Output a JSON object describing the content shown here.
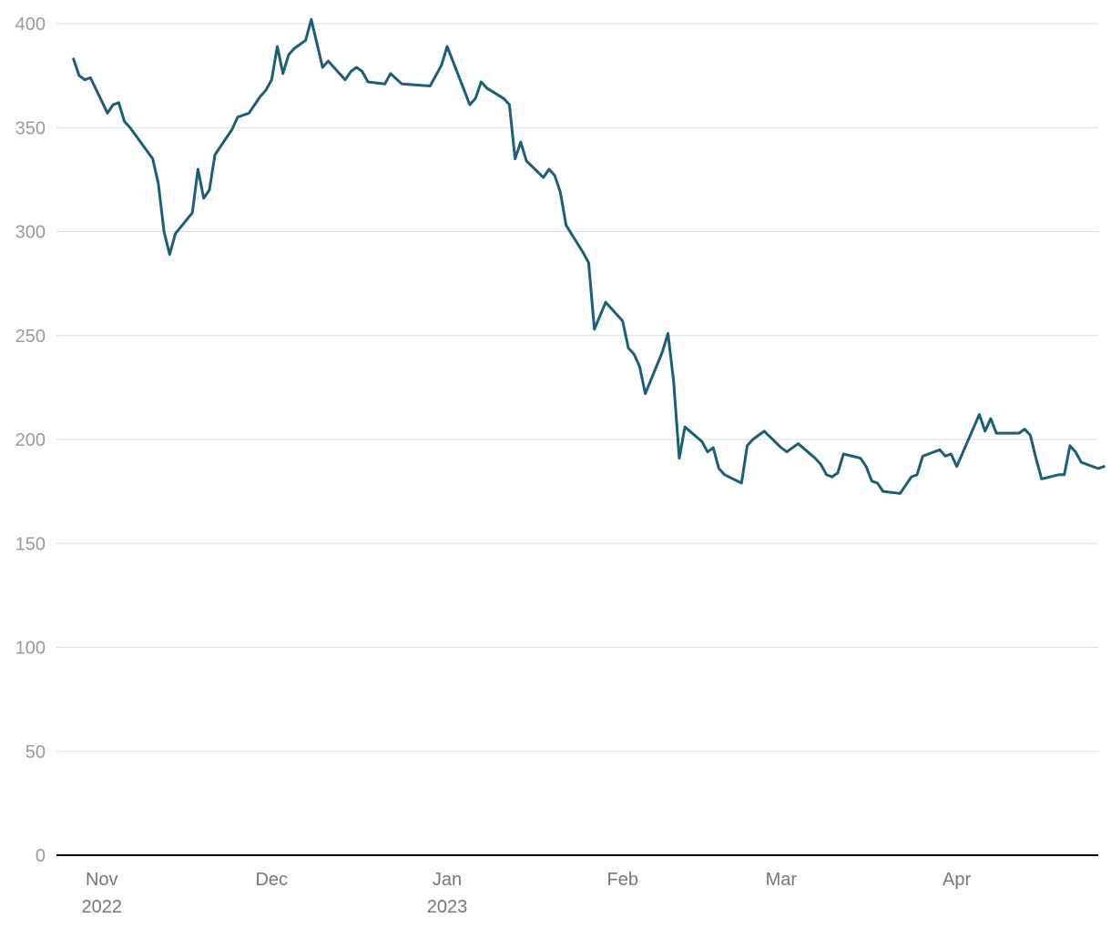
{
  "chart_data": {
    "type": "line",
    "title": "",
    "xlabel": "",
    "ylabel": "",
    "ylim": [
      0,
      400
    ],
    "xlim": [
      "2022-10-24",
      "2023-04-26"
    ],
    "yticks": [
      0,
      50,
      100,
      150,
      200,
      250,
      300,
      350,
      400
    ],
    "xticks": [
      {
        "date": "2022-11-01",
        "label": "Nov",
        "sublabel": "2022"
      },
      {
        "date": "2022-12-01",
        "label": "Dec",
        "sublabel": ""
      },
      {
        "date": "2023-01-01",
        "label": "Jan",
        "sublabel": "2023"
      },
      {
        "date": "2023-02-01",
        "label": "Feb",
        "sublabel": ""
      },
      {
        "date": "2023-03-01",
        "label": "Mar",
        "sublabel": ""
      },
      {
        "date": "2023-04-01",
        "label": "Apr",
        "sublabel": ""
      }
    ],
    "grid": true,
    "line_color": "#1b5e78",
    "series": [
      {
        "name": "",
        "points": [
          [
            "2022-10-27",
            383
          ],
          [
            "2022-10-28",
            375
          ],
          [
            "2022-10-29",
            373
          ],
          [
            "2022-10-30",
            374
          ],
          [
            "2022-11-02",
            357
          ],
          [
            "2022-11-03",
            361
          ],
          [
            "2022-11-04",
            362
          ],
          [
            "2022-11-05",
            353
          ],
          [
            "2022-11-06",
            350
          ],
          [
            "2022-11-10",
            335
          ],
          [
            "2022-11-11",
            323
          ],
          [
            "2022-11-12",
            300
          ],
          [
            "2022-11-13",
            289
          ],
          [
            "2022-11-14",
            299
          ],
          [
            "2022-11-17",
            309
          ],
          [
            "2022-11-18",
            330
          ],
          [
            "2022-11-19",
            316
          ],
          [
            "2022-11-20",
            320
          ],
          [
            "2022-11-21",
            337
          ],
          [
            "2022-11-24",
            349
          ],
          [
            "2022-11-25",
            355
          ],
          [
            "2022-11-26",
            356
          ],
          [
            "2022-11-27",
            357
          ],
          [
            "2022-11-28",
            361
          ],
          [
            "2022-11-29",
            365
          ],
          [
            "2022-11-30",
            368
          ],
          [
            "2022-12-01",
            373
          ],
          [
            "2022-12-02",
            389
          ],
          [
            "2022-12-03",
            376
          ],
          [
            "2022-12-04",
            385
          ],
          [
            "2022-12-05",
            388
          ],
          [
            "2022-12-07",
            392
          ],
          [
            "2022-12-08",
            402
          ],
          [
            "2022-12-10",
            379
          ],
          [
            "2022-12-11",
            382
          ],
          [
            "2022-12-14",
            373
          ],
          [
            "2022-12-15",
            377
          ],
          [
            "2022-12-16",
            379
          ],
          [
            "2022-12-17",
            377
          ],
          [
            "2022-12-18",
            372
          ],
          [
            "2022-12-21",
            371
          ],
          [
            "2022-12-22",
            376
          ],
          [
            "2022-12-24",
            371
          ],
          [
            "2022-12-29",
            370
          ],
          [
            "2022-12-31",
            380
          ],
          [
            "2023-01-01",
            389
          ],
          [
            "2023-01-04",
            368
          ],
          [
            "2023-01-05",
            361
          ],
          [
            "2023-01-06",
            364
          ],
          [
            "2023-01-07",
            372
          ],
          [
            "2023-01-08",
            369
          ],
          [
            "2023-01-11",
            364
          ],
          [
            "2023-01-12",
            361
          ],
          [
            "2023-01-13",
            335
          ],
          [
            "2023-01-14",
            343
          ],
          [
            "2023-01-15",
            334
          ],
          [
            "2023-01-18",
            326
          ],
          [
            "2023-01-19",
            330
          ],
          [
            "2023-01-20",
            327
          ],
          [
            "2023-01-21",
            319
          ],
          [
            "2023-01-22",
            303
          ],
          [
            "2023-01-25",
            290
          ],
          [
            "2023-01-26",
            285
          ],
          [
            "2023-01-27",
            253
          ],
          [
            "2023-01-29",
            266
          ],
          [
            "2023-02-01",
            257
          ],
          [
            "2023-02-02",
            244
          ],
          [
            "2023-02-03",
            241
          ],
          [
            "2023-02-04",
            235
          ],
          [
            "2023-02-05",
            222
          ],
          [
            "2023-02-08",
            242
          ],
          [
            "2023-02-09",
            251
          ],
          [
            "2023-02-10",
            228
          ],
          [
            "2023-02-11",
            191
          ],
          [
            "2023-02-12",
            206
          ],
          [
            "2023-02-15",
            199
          ],
          [
            "2023-02-16",
            194
          ],
          [
            "2023-02-17",
            196
          ],
          [
            "2023-02-18",
            186
          ],
          [
            "2023-02-19",
            183
          ],
          [
            "2023-02-22",
            179
          ],
          [
            "2023-02-23",
            197
          ],
          [
            "2023-02-24",
            200
          ],
          [
            "2023-02-26",
            204
          ],
          [
            "2023-03-01",
            196
          ],
          [
            "2023-03-02",
            194
          ],
          [
            "2023-03-03",
            196
          ],
          [
            "2023-03-04",
            198
          ],
          [
            "2023-03-07",
            191
          ],
          [
            "2023-03-08",
            188
          ],
          [
            "2023-03-09",
            183
          ],
          [
            "2023-03-10",
            182
          ],
          [
            "2023-03-11",
            184
          ],
          [
            "2023-03-12",
            193
          ],
          [
            "2023-03-15",
            191
          ],
          [
            "2023-03-16",
            187
          ],
          [
            "2023-03-17",
            180
          ],
          [
            "2023-03-18",
            179
          ],
          [
            "2023-03-19",
            175
          ],
          [
            "2023-03-22",
            174
          ],
          [
            "2023-03-23",
            178
          ],
          [
            "2023-03-24",
            182
          ],
          [
            "2023-03-25",
            183
          ],
          [
            "2023-03-26",
            192
          ],
          [
            "2023-03-29",
            195
          ],
          [
            "2023-03-30",
            192
          ],
          [
            "2023-03-31",
            193
          ],
          [
            "2023-04-01",
            187
          ],
          [
            "2023-04-05",
            212
          ],
          [
            "2023-04-06",
            204
          ],
          [
            "2023-04-07",
            210
          ],
          [
            "2023-04-08",
            203
          ],
          [
            "2023-04-12",
            203
          ],
          [
            "2023-04-13",
            205
          ],
          [
            "2023-04-14",
            202
          ],
          [
            "2023-04-15",
            191
          ],
          [
            "2023-04-16",
            181
          ],
          [
            "2023-04-19",
            183
          ],
          [
            "2023-04-20",
            183
          ],
          [
            "2023-04-21",
            197
          ],
          [
            "2023-04-22",
            194
          ],
          [
            "2023-04-23",
            189
          ],
          [
            "2023-04-26",
            186
          ],
          [
            "2023-04-27",
            187
          ]
        ]
      }
    ]
  }
}
